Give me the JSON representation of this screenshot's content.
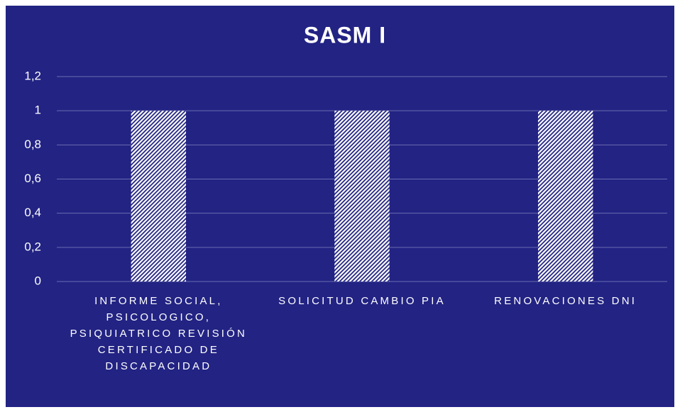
{
  "chart_data": {
    "type": "bar",
    "title": "SASM I",
    "categories": [
      "INFORME SOCIAL, PSICOLOGICO, PSIQUIATRICO REVISIÓN CERTIFICADO DE DISCAPACIDAD",
      "SOLICITUD CAMBIO PIA",
      "RENOVACIONES DNI"
    ],
    "values": [
      1,
      1,
      1
    ],
    "color": "#ffffff",
    "background": "#222383",
    "ylim": [
      0,
      1.2
    ],
    "yticks": [
      0,
      {
        "value": 0.2,
        "label": "0,2"
      },
      {
        "value": 0.4,
        "label": "0,4"
      },
      {
        "value": 0.6,
        "label": "0,6"
      },
      {
        "value": 0.8,
        "label": "0,8"
      },
      1,
      {
        "value": 1.2,
        "label": "1,2"
      }
    ],
    "grid": true
  }
}
